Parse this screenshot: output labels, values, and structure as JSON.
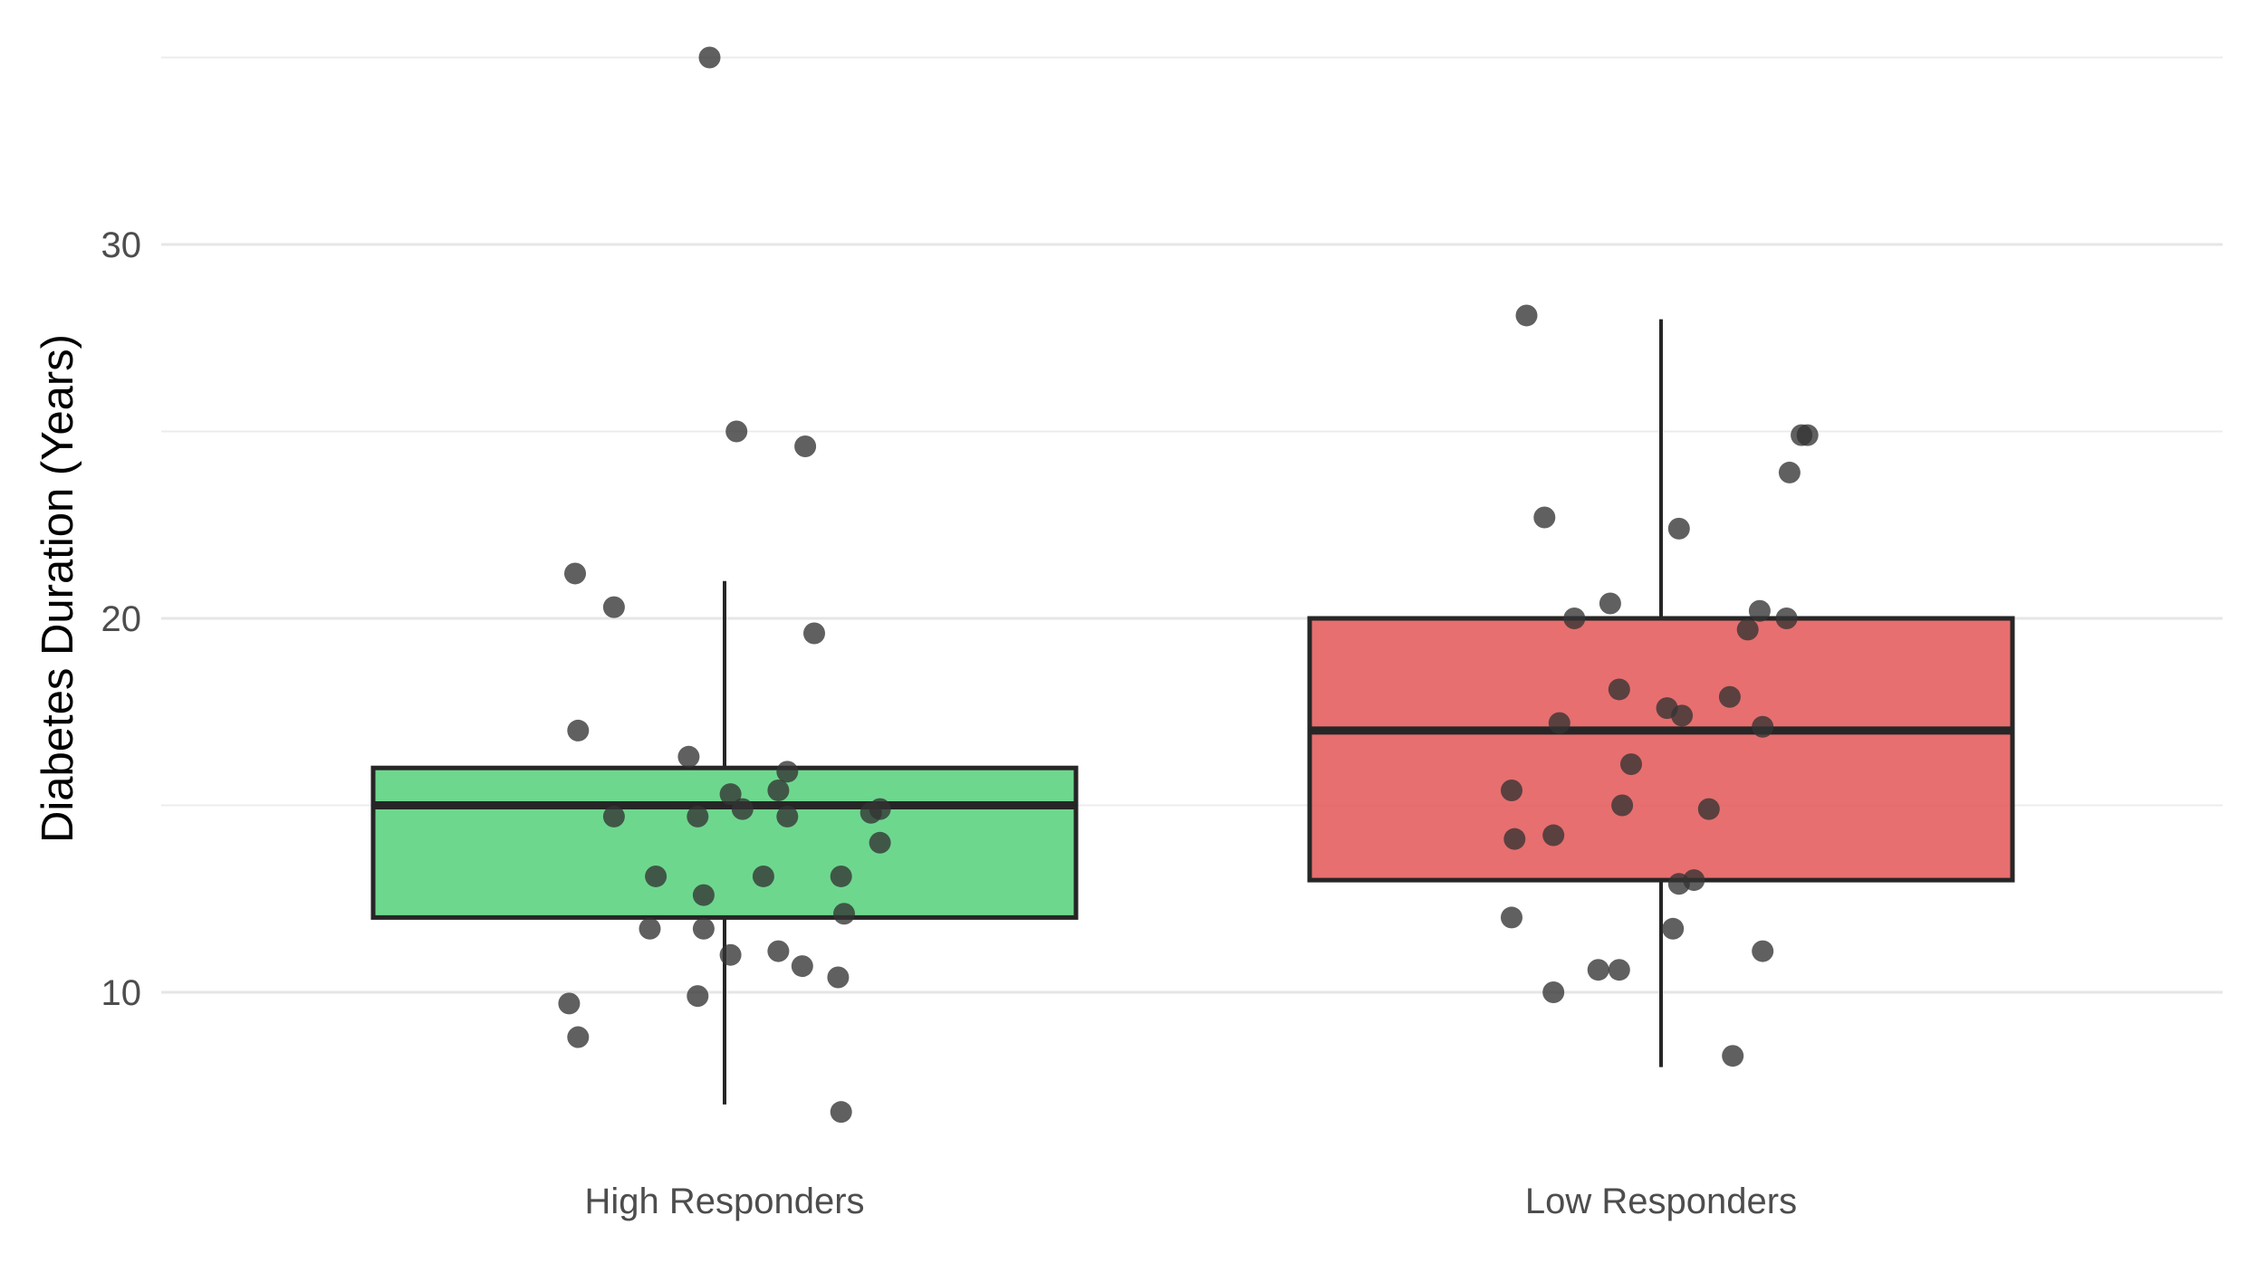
{
  "chart_data": {
    "type": "boxplot",
    "title": "",
    "xlabel": "",
    "ylabel": "Diabetes Duration (Years)",
    "ylim": [
      5,
      35.5
    ],
    "y_ticks": [
      10,
      20,
      30
    ],
    "y_tick_labels": [
      "10",
      "20",
      "30"
    ],
    "minor_gridlines": [
      15,
      25,
      35
    ],
    "grid": "horizontal",
    "legend": "none",
    "categories": [
      "High Responders",
      "Low Responders"
    ],
    "boxes": [
      {
        "category": "High Responders",
        "color": "#5ad17e",
        "q1": 12,
        "median": 15,
        "q3": 16,
        "whisker_low": 7,
        "whisker_high": 21
      },
      {
        "category": "Low Responders",
        "color": "#e45b5b",
        "q1": 13,
        "median": 17,
        "q3": 20,
        "whisker_low": 8,
        "whisker_high": 28
      }
    ],
    "points": [
      {
        "category": "High Responders",
        "jitter": -0.05,
        "y": 35.0
      },
      {
        "category": "High Responders",
        "jitter": 0.04,
        "y": 25.0
      },
      {
        "category": "High Responders",
        "jitter": 0.27,
        "y": 24.6
      },
      {
        "category": "High Responders",
        "jitter": -0.5,
        "y": 21.2
      },
      {
        "category": "High Responders",
        "jitter": -0.37,
        "y": 20.3
      },
      {
        "category": "High Responders",
        "jitter": 0.3,
        "y": 19.6
      },
      {
        "category": "High Responders",
        "jitter": -0.49,
        "y": 17.0
      },
      {
        "category": "High Responders",
        "jitter": -0.12,
        "y": 16.3
      },
      {
        "category": "High Responders",
        "jitter": 0.21,
        "y": 15.9
      },
      {
        "category": "High Responders",
        "jitter": 0.18,
        "y": 15.4
      },
      {
        "category": "High Responders",
        "jitter": 0.02,
        "y": 15.3
      },
      {
        "category": "High Responders",
        "jitter": 0.06,
        "y": 14.9
      },
      {
        "category": "High Responders",
        "jitter": 0.52,
        "y": 14.9
      },
      {
        "category": "High Responders",
        "jitter": 0.49,
        "y": 14.8
      },
      {
        "category": "High Responders",
        "jitter": -0.37,
        "y": 14.7
      },
      {
        "category": "High Responders",
        "jitter": -0.09,
        "y": 14.7
      },
      {
        "category": "High Responders",
        "jitter": 0.21,
        "y": 14.7
      },
      {
        "category": "High Responders",
        "jitter": 0.52,
        "y": 14.0
      },
      {
        "category": "High Responders",
        "jitter": -0.23,
        "y": 13.1
      },
      {
        "category": "High Responders",
        "jitter": 0.13,
        "y": 13.1
      },
      {
        "category": "High Responders",
        "jitter": 0.39,
        "y": 13.1
      },
      {
        "category": "High Responders",
        "jitter": -0.07,
        "y": 12.6
      },
      {
        "category": "High Responders",
        "jitter": 0.4,
        "y": 12.1
      },
      {
        "category": "High Responders",
        "jitter": -0.25,
        "y": 11.7
      },
      {
        "category": "High Responders",
        "jitter": -0.07,
        "y": 11.7
      },
      {
        "category": "High Responders",
        "jitter": 0.02,
        "y": 11.0
      },
      {
        "category": "High Responders",
        "jitter": 0.18,
        "y": 11.1
      },
      {
        "category": "High Responders",
        "jitter": 0.26,
        "y": 10.7
      },
      {
        "category": "High Responders",
        "jitter": 0.38,
        "y": 10.4
      },
      {
        "category": "High Responders",
        "jitter": -0.09,
        "y": 9.9
      },
      {
        "category": "High Responders",
        "jitter": -0.52,
        "y": 9.7
      },
      {
        "category": "High Responders",
        "jitter": -0.49,
        "y": 8.8
      },
      {
        "category": "High Responders",
        "jitter": 0.39,
        "y": 6.8
      },
      {
        "category": "Low Responders",
        "jitter": -0.45,
        "y": 28.1
      },
      {
        "category": "Low Responders",
        "jitter": 0.47,
        "y": 24.9
      },
      {
        "category": "Low Responders",
        "jitter": 0.49,
        "y": 24.9
      },
      {
        "category": "Low Responders",
        "jitter": 0.43,
        "y": 23.9
      },
      {
        "category": "Low Responders",
        "jitter": -0.39,
        "y": 22.7
      },
      {
        "category": "Low Responders",
        "jitter": 0.06,
        "y": 22.4
      },
      {
        "category": "Low Responders",
        "jitter": -0.17,
        "y": 20.4
      },
      {
        "category": "Low Responders",
        "jitter": 0.33,
        "y": 20.2
      },
      {
        "category": "Low Responders",
        "jitter": -0.29,
        "y": 20.0
      },
      {
        "category": "Low Responders",
        "jitter": 0.42,
        "y": 20.0
      },
      {
        "category": "Low Responders",
        "jitter": 0.29,
        "y": 19.7
      },
      {
        "category": "Low Responders",
        "jitter": -0.14,
        "y": 18.1
      },
      {
        "category": "Low Responders",
        "jitter": 0.23,
        "y": 17.9
      },
      {
        "category": "Low Responders",
        "jitter": 0.02,
        "y": 17.6
      },
      {
        "category": "Low Responders",
        "jitter": 0.07,
        "y": 17.4
      },
      {
        "category": "Low Responders",
        "jitter": -0.34,
        "y": 17.2
      },
      {
        "category": "Low Responders",
        "jitter": 0.34,
        "y": 17.1
      },
      {
        "category": "Low Responders",
        "jitter": -0.1,
        "y": 16.1
      },
      {
        "category": "Low Responders",
        "jitter": -0.5,
        "y": 15.4
      },
      {
        "category": "Low Responders",
        "jitter": -0.13,
        "y": 15.0
      },
      {
        "category": "Low Responders",
        "jitter": 0.16,
        "y": 14.9
      },
      {
        "category": "Low Responders",
        "jitter": -0.36,
        "y": 14.2
      },
      {
        "category": "Low Responders",
        "jitter": -0.49,
        "y": 14.1
      },
      {
        "category": "Low Responders",
        "jitter": 0.11,
        "y": 13.0
      },
      {
        "category": "Low Responders",
        "jitter": 0.06,
        "y": 12.9
      },
      {
        "category": "Low Responders",
        "jitter": -0.5,
        "y": 12.0
      },
      {
        "category": "Low Responders",
        "jitter": 0.04,
        "y": 11.7
      },
      {
        "category": "Low Responders",
        "jitter": 0.34,
        "y": 11.1
      },
      {
        "category": "Low Responders",
        "jitter": -0.21,
        "y": 10.6
      },
      {
        "category": "Low Responders",
        "jitter": -0.14,
        "y": 10.6
      },
      {
        "category": "Low Responders",
        "jitter": -0.36,
        "y": 10.0
      },
      {
        "category": "Low Responders",
        "jitter": 0.24,
        "y": 8.3
      }
    ],
    "point_color": "#333333",
    "box_outline_color": "#262626",
    "grid_color": "#e6e6e6"
  }
}
